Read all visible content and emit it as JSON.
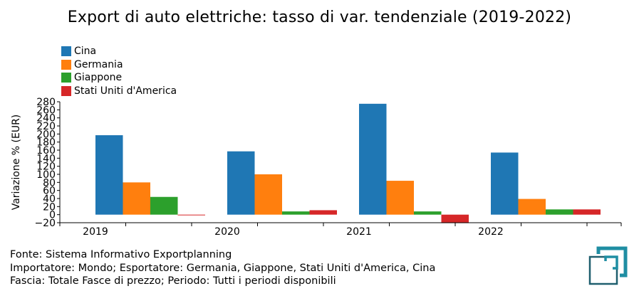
{
  "chart_data": {
    "type": "bar",
    "title": "Export di auto elettriche: tasso di var. tendenziale (2019-2022)",
    "ylabel": "Variazione % (EUR)",
    "xlabel": "",
    "categories": [
      "2019",
      "2020",
      "2021",
      "2022"
    ],
    "series": [
      {
        "name": "Cina",
        "color": "#1f77b4",
        "values": [
          197,
          157,
          275,
          154
        ]
      },
      {
        "name": "Germania",
        "color": "#ff7f0e",
        "values": [
          80,
          100,
          84,
          39
        ]
      },
      {
        "name": "Giappone",
        "color": "#2ca02c",
        "values": [
          44,
          8,
          8,
          13
        ]
      },
      {
        "name": "Stati Uniti d'America",
        "color": "#d62728",
        "values": [
          -1,
          11,
          -21,
          13
        ]
      }
    ],
    "ylim": [
      -20,
      280
    ],
    "yticks": [
      -20,
      0,
      20,
      40,
      60,
      80,
      100,
      120,
      140,
      160,
      180,
      200,
      220,
      240,
      260,
      280
    ],
    "legend_position": "top-left",
    "grid": false
  },
  "footer": {
    "line1": "Fonte: Sistema Informativo Exportplanning",
    "line2": "Importatore: Mondo; Esportatore: Germania, Giappone, Stati Uniti d'America, Cina",
    "line3": "Fascia: Totale Fasce di prezzo; Periodo: Tutti i periodi disponibili"
  },
  "logo": {
    "icon": "exportplanning-logo-icon",
    "color": "#1f8ea3"
  }
}
